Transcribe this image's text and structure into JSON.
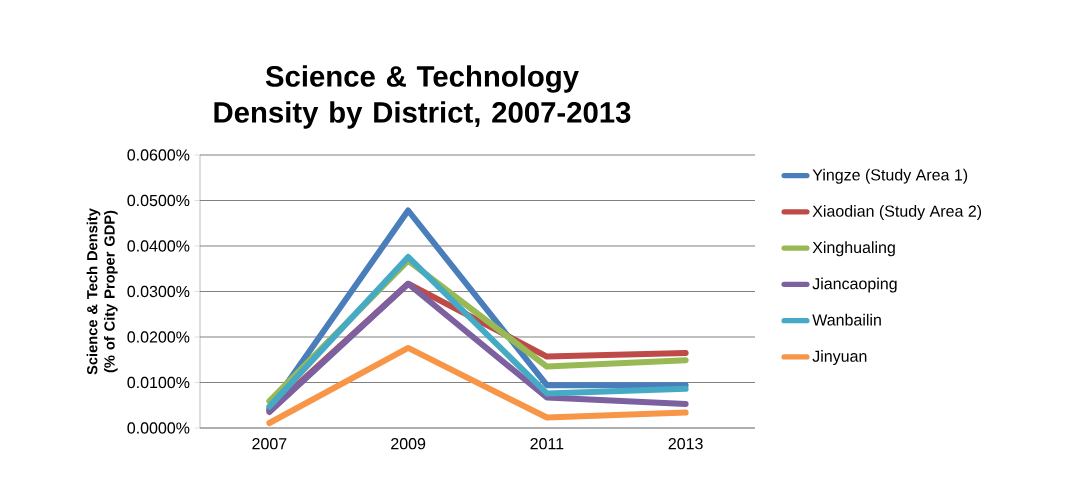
{
  "chart_data": {
    "type": "line",
    "title": "Science & Technology Density by District, 2007-2013",
    "ylabel": "Science & Tech Density (% of City Proper GDP)",
    "categories": [
      "2007",
      "2009",
      "2011",
      "2013"
    ],
    "series": [
      {
        "name": "Yingze (Study Area 1)",
        "color": "#4a7ebb",
        "values": [
          0.0043,
          0.0478,
          0.0094,
          0.0094
        ]
      },
      {
        "name": "Xiaodian (Study Area 2)",
        "color": "#be4b48",
        "values": [
          0.0039,
          0.0317,
          0.0157,
          0.0165
        ]
      },
      {
        "name": "Xinghualing",
        "color": "#98b954",
        "values": [
          0.0059,
          0.0368,
          0.0135,
          0.0149
        ]
      },
      {
        "name": "Jiancaoping",
        "color": "#7d60a0",
        "values": [
          0.0035,
          0.0317,
          0.0067,
          0.0053
        ]
      },
      {
        "name": "Wanbailin",
        "color": "#46aac5",
        "values": [
          0.0047,
          0.0376,
          0.0076,
          0.0086
        ]
      },
      {
        "name": "Jinyuan",
        "color": "#f79646",
        "values": [
          0.0011,
          0.0176,
          0.0023,
          0.0034
        ]
      }
    ],
    "ylim": [
      0,
      0.06
    ],
    "yticks": [
      {
        "value": 0,
        "label": "0.0000%"
      },
      {
        "value": 0.01,
        "label": "0.0100%"
      },
      {
        "value": 0.02,
        "label": "0.0200%"
      },
      {
        "value": 0.03,
        "label": "0.0300%"
      },
      {
        "value": 0.04,
        "label": "0.0400%"
      },
      {
        "value": 0.05,
        "label": "0.0500%"
      },
      {
        "value": 0.06,
        "label": "0.0600%"
      }
    ],
    "grid": "y",
    "legend": "right",
    "marker": "none",
    "line_style": "solid"
  }
}
